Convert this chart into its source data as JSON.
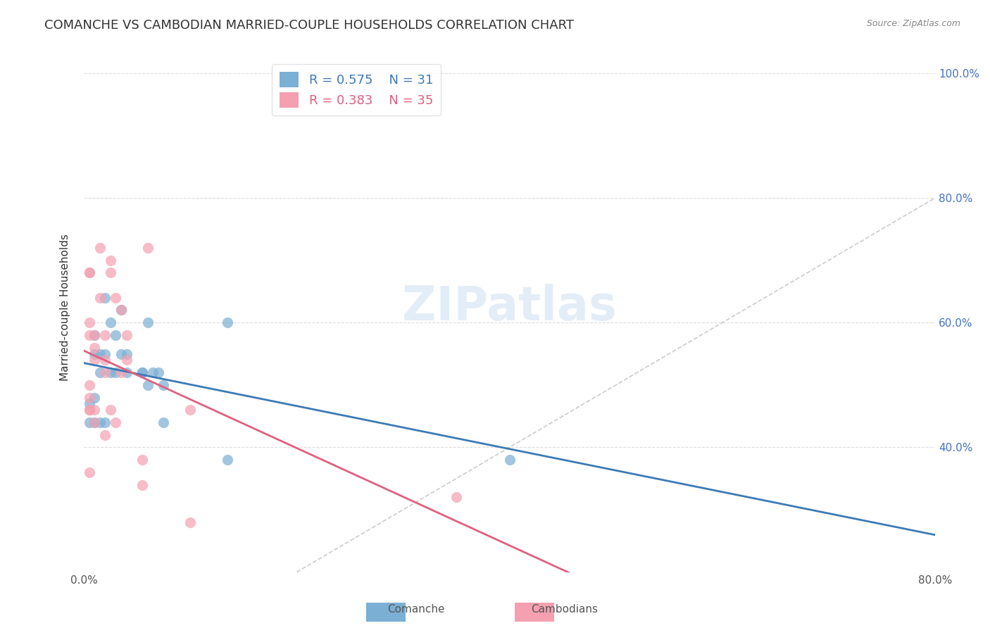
{
  "title": "COMANCHE VS CAMBODIAN MARRIED-COUPLE HOUSEHOLDS CORRELATION CHART",
  "source": "Source: ZipAtlas.com",
  "ylabel": "Married-couple Households",
  "xlabel": "",
  "xlim": [
    0.0,
    0.8
  ],
  "ylim": [
    0.2,
    1.05
  ],
  "x_ticks": [
    0.0,
    0.1,
    0.2,
    0.3,
    0.4,
    0.5,
    0.6,
    0.7,
    0.8
  ],
  "x_tick_labels": [
    "0.0%",
    "",
    "",
    "",
    "",
    "",
    "",
    "",
    "80.0%"
  ],
  "y_ticks": [
    0.4,
    0.6,
    0.8,
    1.0
  ],
  "y_tick_labels": [
    "40.0%",
    "60.0%",
    "80.0%",
    "100.0%"
  ],
  "comanche_R": 0.575,
  "comanche_N": 31,
  "cambodian_R": 0.383,
  "cambodian_N": 35,
  "comanche_color": "#7bafd4",
  "cambodian_color": "#f4a0b0",
  "comanche_line_color": "#3d7ab5",
  "cambodian_line_color": "#e06080",
  "diagonal_color": "#cccccc",
  "background_color": "#ffffff",
  "grid_color": "#dddddd",
  "watermark": "ZIPatlas",
  "comanche_x": [
    0.005,
    0.005,
    0.01,
    0.01,
    0.01,
    0.01,
    0.015,
    0.015,
    0.015,
    0.02,
    0.02,
    0.02,
    0.025,
    0.025,
    0.03,
    0.03,
    0.035,
    0.035,
    0.04,
    0.04,
    0.055,
    0.055,
    0.06,
    0.06,
    0.065,
    0.07,
    0.075,
    0.075,
    0.135,
    0.135,
    0.4
  ],
  "comanche_y": [
    0.47,
    0.44,
    0.58,
    0.55,
    0.48,
    0.44,
    0.55,
    0.52,
    0.44,
    0.64,
    0.55,
    0.44,
    0.6,
    0.52,
    0.58,
    0.52,
    0.62,
    0.55,
    0.55,
    0.52,
    0.52,
    0.52,
    0.6,
    0.5,
    0.52,
    0.52,
    0.5,
    0.44,
    0.6,
    0.38,
    0.38
  ],
  "cambodian_x": [
    0.005,
    0.005,
    0.005,
    0.005,
    0.005,
    0.005,
    0.005,
    0.005,
    0.005,
    0.01,
    0.01,
    0.01,
    0.01,
    0.01,
    0.015,
    0.015,
    0.02,
    0.02,
    0.02,
    0.02,
    0.025,
    0.025,
    0.025,
    0.03,
    0.03,
    0.035,
    0.035,
    0.04,
    0.04,
    0.055,
    0.055,
    0.06,
    0.1,
    0.1,
    0.35
  ],
  "cambodian_y": [
    0.68,
    0.68,
    0.6,
    0.58,
    0.5,
    0.48,
    0.46,
    0.46,
    0.36,
    0.58,
    0.56,
    0.54,
    0.46,
    0.44,
    0.72,
    0.64,
    0.58,
    0.54,
    0.52,
    0.42,
    0.7,
    0.68,
    0.46,
    0.64,
    0.44,
    0.62,
    0.52,
    0.58,
    0.54,
    0.38,
    0.34,
    0.72,
    0.46,
    0.28,
    0.32
  ],
  "legend_box_color": "#ffffff",
  "title_fontsize": 13,
  "label_fontsize": 11,
  "tick_fontsize": 11,
  "legend_fontsize": 13
}
